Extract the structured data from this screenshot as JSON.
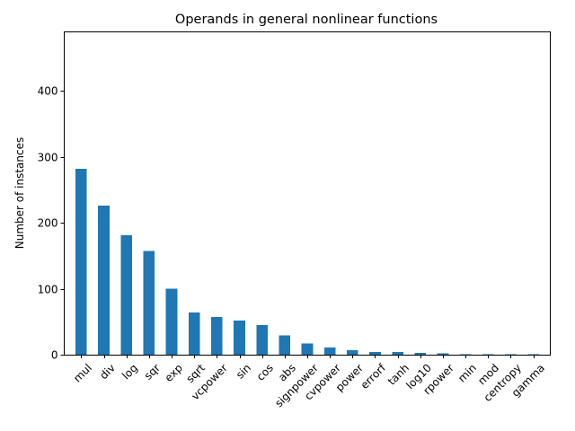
{
  "chart_data": {
    "type": "bar",
    "title": "Operands in general nonlinear functions",
    "xlabel": "",
    "ylabel": "Number of instances",
    "ylim": [
      0,
      490
    ],
    "yticks": [
      0,
      100,
      200,
      300,
      400
    ],
    "grid": false,
    "legend": "none",
    "bar_color": "#1f77b4",
    "categories": [
      "mul",
      "div",
      "log",
      "sqr",
      "exp",
      "sqrt",
      "vcpower",
      "sin",
      "cos",
      "abs",
      "signpower",
      "cvpower",
      "power",
      "errorf",
      "tanh",
      "log10",
      "rpower",
      "min",
      "mod",
      "centropy",
      "gamma"
    ],
    "values": [
      282,
      226,
      181,
      157,
      100,
      64,
      57,
      52,
      45,
      29,
      17,
      11,
      7,
      4,
      4,
      3,
      2,
      1,
      1,
      1,
      1
    ]
  }
}
